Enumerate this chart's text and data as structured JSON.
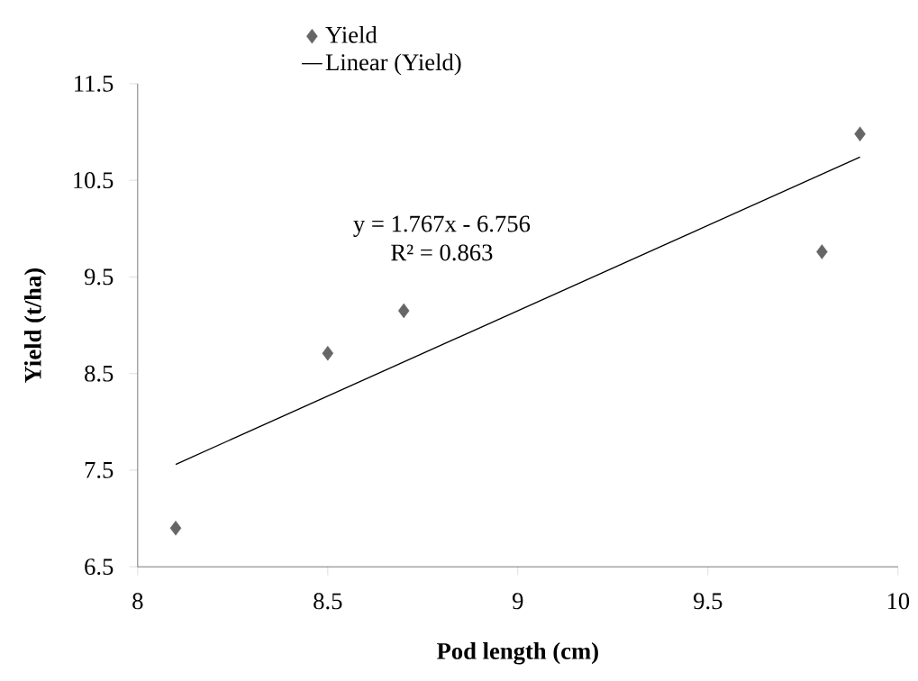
{
  "chart_data": {
    "type": "scatter",
    "xlabel": "Pod length (cm)",
    "ylabel": "Yield (t/ha)",
    "xlim": [
      8,
      10
    ],
    "xticks": [
      8,
      8.5,
      9,
      9.5,
      10
    ],
    "ylim": [
      6.5,
      11.5
    ],
    "yticks": [
      6.5,
      7.5,
      8.5,
      9.5,
      10.5,
      11.5
    ],
    "grid": false,
    "legend": "top",
    "annotations": [
      "y = 1.767x - 6.756",
      "R² = 0.863"
    ],
    "series": [
      {
        "name": "Yield",
        "marker": "diamond",
        "color": "#666666",
        "x": [
          8.1,
          8.5,
          8.7,
          9.8,
          9.9
        ],
        "values": [
          6.9,
          8.71,
          9.15,
          9.76,
          10.98
        ]
      },
      {
        "name": "Linear (Yield)",
        "type": "line",
        "marker": "none",
        "line_style": "solid",
        "color": "#000000",
        "x": [
          8.1,
          9.9
        ],
        "values": [
          7.56,
          10.74
        ]
      }
    ]
  }
}
